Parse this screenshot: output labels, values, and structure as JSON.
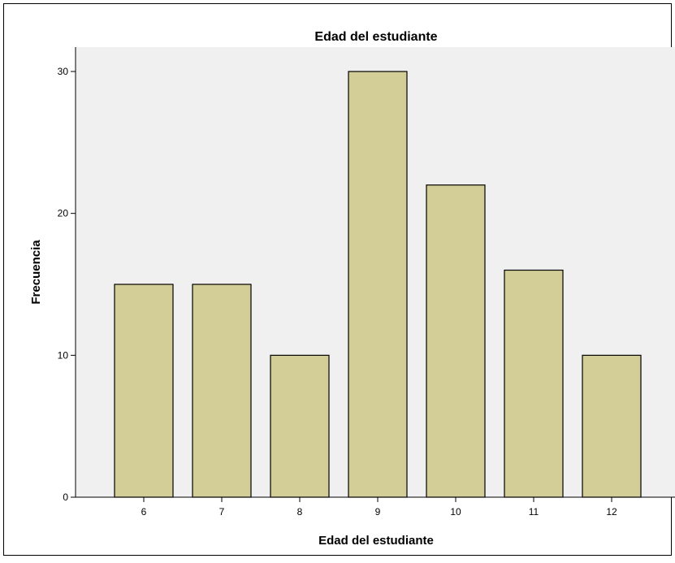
{
  "chart_data": {
    "type": "bar",
    "title": "Edad del estudiante",
    "xlabel": "Edad del estudiante",
    "ylabel": "Frecuencia",
    "categories": [
      "6",
      "7",
      "8",
      "9",
      "10",
      "11",
      "12"
    ],
    "values": [
      15,
      15,
      10,
      30,
      22,
      16,
      10
    ],
    "yticks": [
      "0",
      "10",
      "20",
      "30"
    ],
    "ylim": [
      0,
      31.5
    ],
    "grid": false,
    "legend": "none",
    "colors": {
      "plot_background": "#f0f0f0",
      "bar_fill": "#d3ce97",
      "bar_stroke": "#000000"
    }
  }
}
